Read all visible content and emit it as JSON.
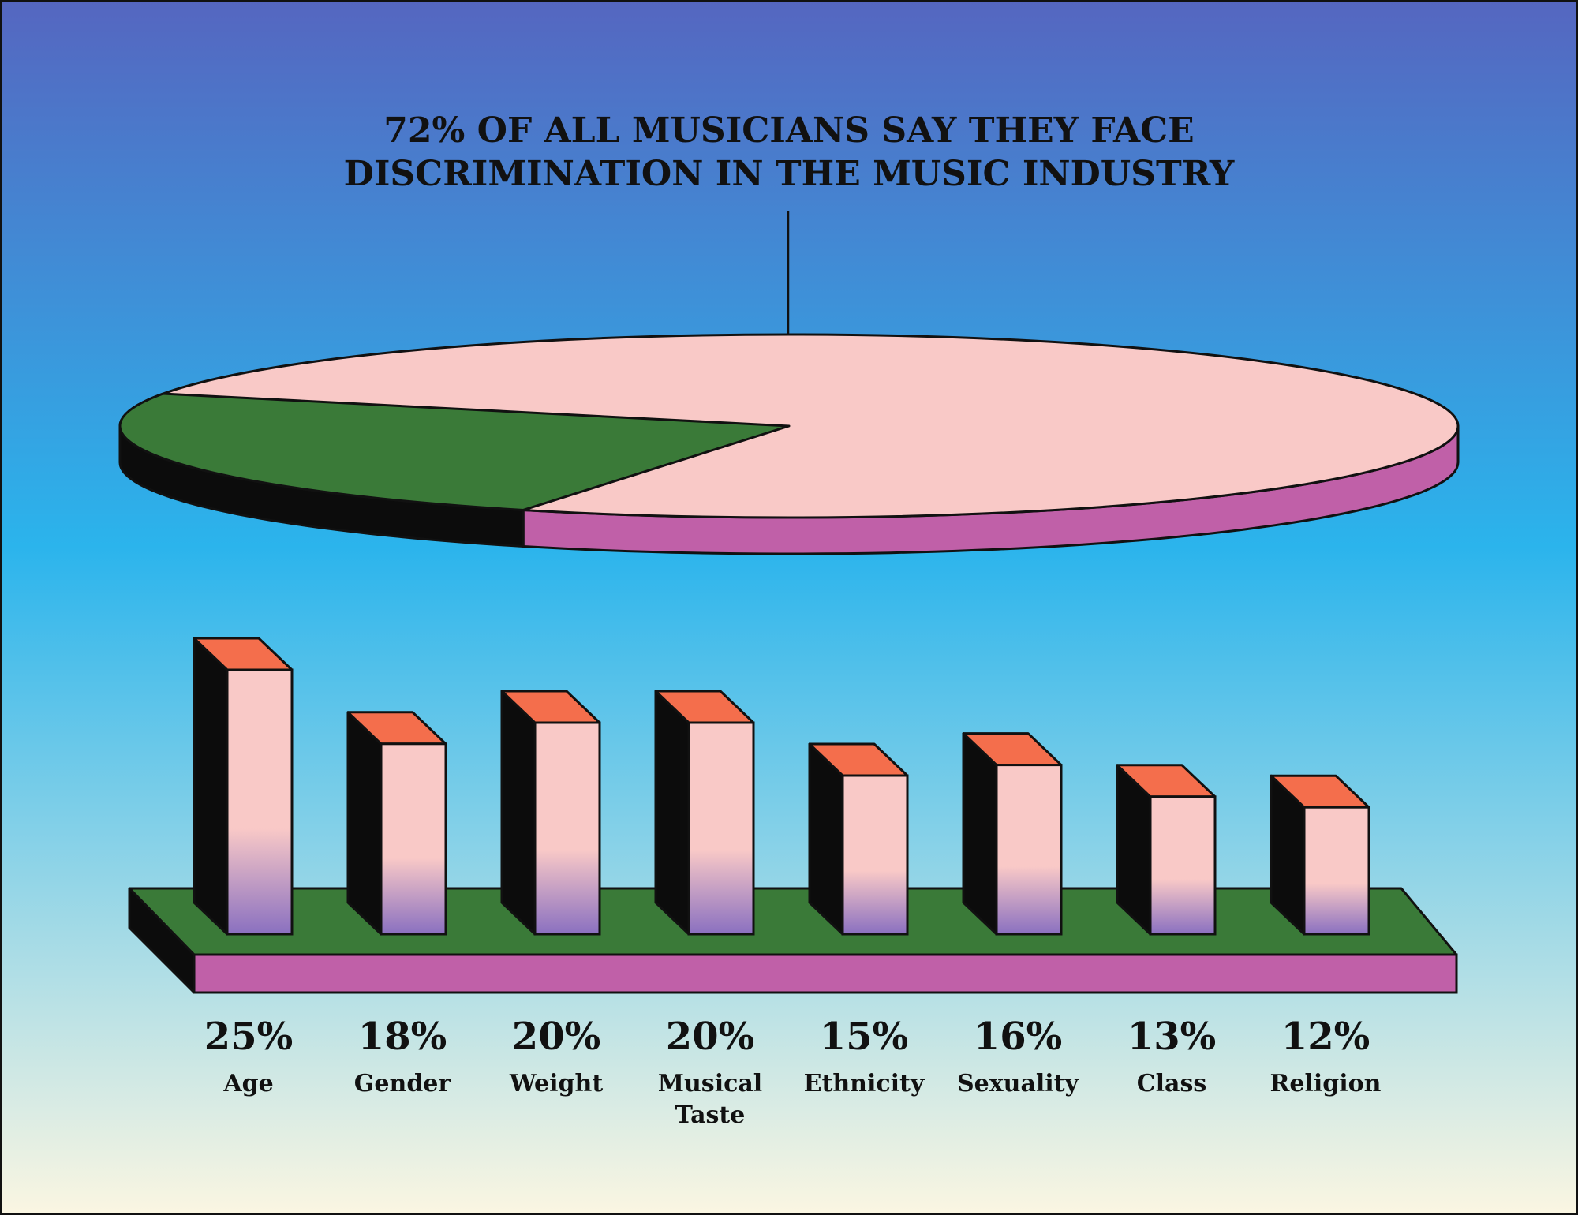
{
  "colors": {
    "pie_top": "#f9c9c7",
    "pie_slice": "#3a7a38",
    "pie_side_front": "#c060a8",
    "pie_side_back": "#0c0c0c",
    "bar_front_top": "#f9c9c7",
    "bar_front_bottom": "#8a70c0",
    "bar_side": "#0c0c0c",
    "bar_cap": "#f46e4c",
    "base_top": "#3a7a38",
    "base_front": "#c060a8",
    "background_top": "#5566c0",
    "background_mid": "#2bb4ec",
    "background_bottom": "#fbf6e2"
  },
  "chart_data": [
    {
      "type": "pie",
      "title_lines": [
        "72% OF ALL MUSICIANS SAY THEY FACE",
        "DISCRIMINATION IN THE MUSIC INDUSTRY"
      ],
      "slices": [
        {
          "value": 72
        },
        {
          "value": 28
        }
      ]
    },
    {
      "type": "bar",
      "categories": [
        [
          "Age"
        ],
        [
          "Gender"
        ],
        [
          "Weight"
        ],
        [
          "Musical",
          "Taste"
        ],
        [
          "Ethnicity"
        ],
        [
          "Sexuality"
        ],
        [
          "Class"
        ],
        [
          "Religion"
        ]
      ],
      "values": [
        25,
        18,
        20,
        20,
        15,
        16,
        13,
        12
      ],
      "value_labels": [
        "25%",
        "18%",
        "20%",
        "20%",
        "15%",
        "16%",
        "13%",
        "12%"
      ]
    }
  ]
}
